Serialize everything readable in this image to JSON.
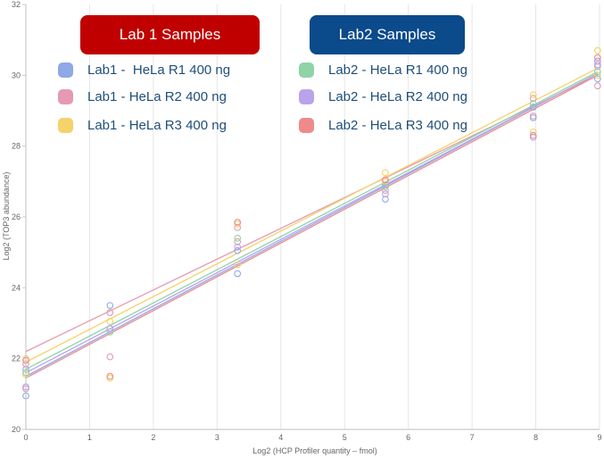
{
  "chart_data": {
    "type": "scatter",
    "title": "",
    "xlabel": "Log2 (HCP Profiler quantity – fmol)",
    "ylabel": "Log2 (TOP3 abundance)",
    "xlim": [
      0,
      9
    ],
    "ylim": [
      20,
      32
    ],
    "x_ticks": [
      "0",
      "1",
      "2",
      "3",
      "4",
      "5",
      "6",
      "7",
      "8",
      "9"
    ],
    "y_ticks": [
      "20",
      "22",
      "24",
      "26",
      "28",
      "30",
      "32"
    ],
    "grid": "vertical",
    "banners": [
      {
        "label": "Lab 1 Samples",
        "color": "#c00000"
      },
      {
        "label": "Lab2 Samples",
        "color": "#0b4a8b"
      }
    ],
    "series": [
      {
        "name": "Lab1 -  HeLa R1 400 ng",
        "color": "#8fa8e8",
        "points": [
          [
            0,
            21.7
          ],
          [
            0,
            20.95
          ],
          [
            1.32,
            23.5
          ],
          [
            1.32,
            22.85
          ],
          [
            3.32,
            24.4
          ],
          [
            3.32,
            25.05
          ],
          [
            5.64,
            26.9
          ],
          [
            5.64,
            26.5
          ],
          [
            7.96,
            29.1
          ],
          [
            7.96,
            28.8
          ],
          [
            8.97,
            29.9
          ],
          [
            8.97,
            30.4
          ]
        ],
        "fit": [
          [
            0,
            21.5
          ],
          [
            8.97,
            30.05
          ]
        ]
      },
      {
        "name": "Lab1 - HeLa R2 400 ng",
        "color": "#e59ab1",
        "points": [
          [
            0,
            21.15
          ],
          [
            0,
            21.85
          ],
          [
            1.32,
            22.05
          ],
          [
            1.32,
            23.3
          ],
          [
            3.32,
            25.3
          ],
          [
            3.32,
            25.7
          ],
          [
            5.64,
            26.75
          ],
          [
            5.64,
            27.0
          ],
          [
            7.96,
            28.85
          ],
          [
            7.96,
            29.35
          ],
          [
            8.97,
            29.7
          ],
          [
            8.97,
            30.25
          ]
        ],
        "fit": [
          [
            0,
            22.2
          ],
          [
            8.97,
            30.0
          ]
        ]
      },
      {
        "name": "Lab1 - HeLa R3 400 ng",
        "color": "#f5d26a",
        "points": [
          [
            0,
            21.55
          ],
          [
            0,
            22.0
          ],
          [
            1.32,
            21.45
          ],
          [
            1.32,
            23.05
          ],
          [
            3.32,
            25.8
          ],
          [
            3.32,
            24.65
          ],
          [
            5.64,
            27.0
          ],
          [
            5.64,
            27.25
          ],
          [
            7.96,
            28.4
          ],
          [
            7.96,
            29.45
          ],
          [
            8.97,
            30.7
          ],
          [
            8.97,
            30.0
          ]
        ],
        "fit": [
          [
            0,
            21.9
          ],
          [
            8.97,
            30.2
          ]
        ]
      },
      {
        "name": "Lab2 - HeLa R1 400 ng",
        "color": "#8fd3a6",
        "points": [
          [
            0,
            21.6
          ],
          [
            1.32,
            22.75
          ],
          [
            3.32,
            25.4
          ],
          [
            5.64,
            26.85
          ],
          [
            7.96,
            29.2
          ],
          [
            8.97,
            30.1
          ]
        ],
        "fit": [
          [
            0,
            21.7
          ],
          [
            8.97,
            30.1
          ]
        ]
      },
      {
        "name": "Lab2 - HeLa R2 400 ng",
        "color": "#b9a3ea",
        "points": [
          [
            0,
            21.2
          ],
          [
            1.32,
            22.85
          ],
          [
            3.32,
            25.15
          ],
          [
            5.64,
            26.65
          ],
          [
            7.96,
            28.25
          ],
          [
            8.97,
            30.3
          ]
        ],
        "fit": [
          [
            0,
            21.6
          ],
          [
            8.97,
            30.05
          ]
        ]
      },
      {
        "name": "Lab2 - HeLa R3 400 ng",
        "color": "#ee8a8a",
        "points": [
          [
            0,
            21.95
          ],
          [
            1.32,
            21.5
          ],
          [
            3.32,
            25.85
          ],
          [
            5.64,
            27.05
          ],
          [
            7.96,
            28.3
          ],
          [
            8.97,
            30.5
          ]
        ],
        "fit": [
          [
            0,
            21.45
          ],
          [
            8.97,
            30.0
          ]
        ]
      }
    ]
  }
}
